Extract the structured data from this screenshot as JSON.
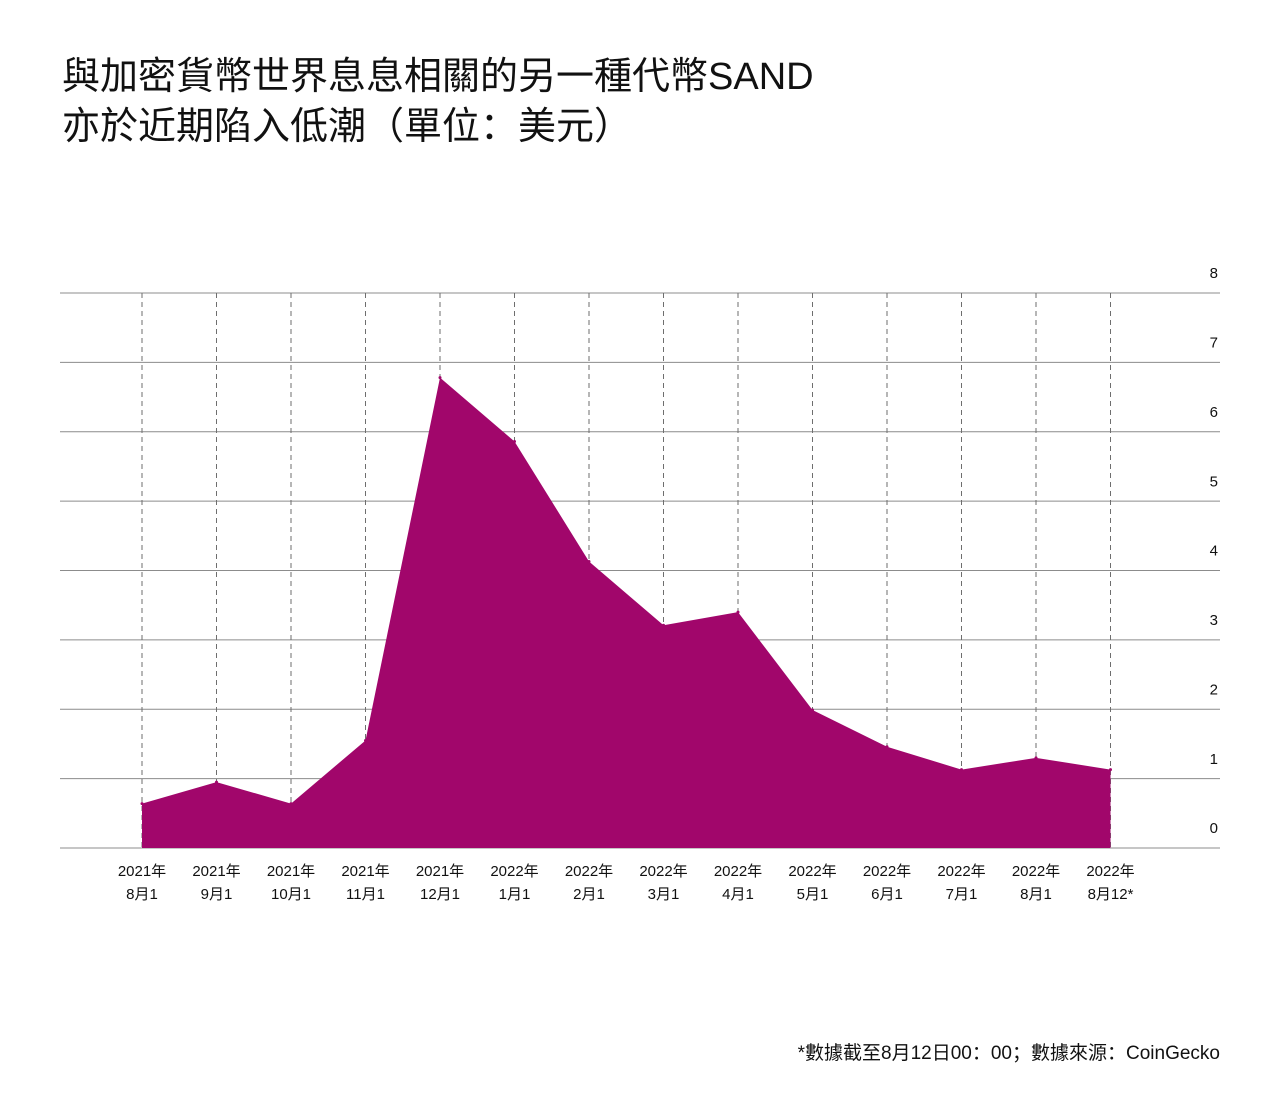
{
  "title": {
    "line1": "與加密貨幣世界息息相關的另一種代幣SAND",
    "line2": "亦於近期陷入低潮（單位：美元）"
  },
  "footnote": "*數據截至8月12日00：00；數據來源：CoinGecko",
  "colors": {
    "area": "#a1066b",
    "grid": "#8c8c8c",
    "text": "#111111"
  },
  "chart_data": {
    "type": "area",
    "title": "與加密貨幣世界息息相關的另一種代幣SAND亦於近期陷入低潮（單位：美元）",
    "x_labels": [
      [
        "2021年",
        "8月1"
      ],
      [
        "2021年",
        "9月1"
      ],
      [
        "2021年",
        "10月1"
      ],
      [
        "2021年",
        "11月1"
      ],
      [
        "2021年",
        "12月1"
      ],
      [
        "2022年",
        "1月1"
      ],
      [
        "2022年",
        "2月1"
      ],
      [
        "2022年",
        "3月1"
      ],
      [
        "2022年",
        "4月1"
      ],
      [
        "2022年",
        "5月1"
      ],
      [
        "2022年",
        "6月1"
      ],
      [
        "2022年",
        "7月1"
      ],
      [
        "2022年",
        "8月1"
      ],
      [
        "2022年",
        "8月12*"
      ]
    ],
    "x": [
      "2021-08-01",
      "2021-09-01",
      "2021-10-01",
      "2021-11-01",
      "2021-12-01",
      "2022-01-01",
      "2022-02-01",
      "2022-03-01",
      "2022-04-01",
      "2022-05-01",
      "2022-06-01",
      "2022-07-01",
      "2022-08-01",
      "2022-08-12"
    ],
    "values": [
      0.64,
      0.95,
      0.64,
      1.55,
      6.78,
      5.86,
      4.13,
      3.21,
      3.4,
      1.99,
      1.46,
      1.13,
      1.3,
      1.13
    ],
    "y_ticks": [
      "0",
      "1",
      "2",
      "3",
      "4",
      "5",
      "6",
      "7",
      "8"
    ],
    "ylim": [
      0,
      8
    ],
    "grid": true,
    "y_axis_position": "right"
  }
}
